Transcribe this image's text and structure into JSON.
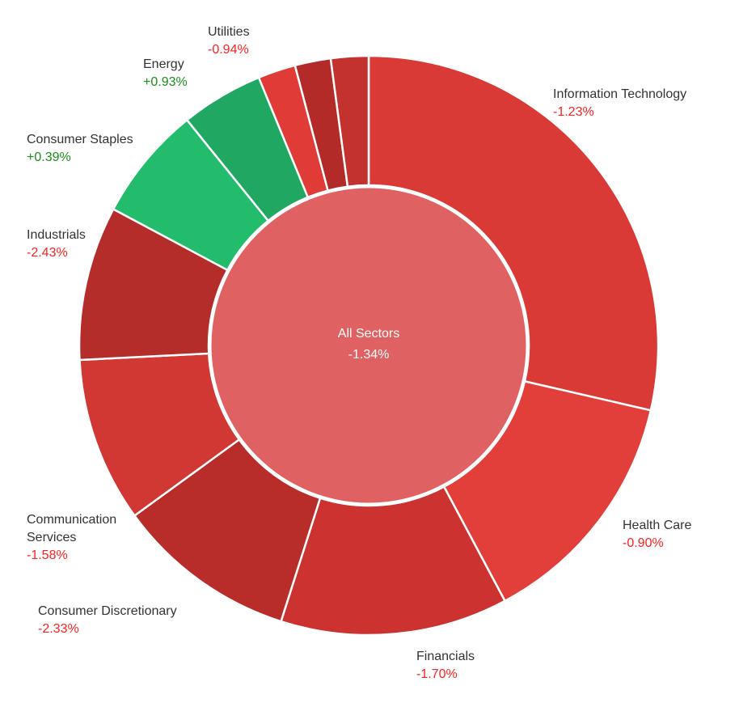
{
  "chart_data": {
    "type": "pie",
    "center": {
      "label": "All Sectors",
      "change": "-1.34%",
      "color": "#e06161"
    },
    "slices": [
      {
        "name": [
          "Information Technology"
        ],
        "change": "-1.23%",
        "weight": 28.6,
        "color": "#d93a35"
      },
      {
        "name": [
          "Health Care"
        ],
        "change": "-0.90%",
        "weight": 13.6,
        "color": "#e23f3a"
      },
      {
        "name": [
          "Financials"
        ],
        "change": "-1.70%",
        "weight": 12.7,
        "color": "#cb3230"
      },
      {
        "name": [
          "Consumer Discretionary"
        ],
        "change": "-2.33%",
        "weight": 10.1,
        "color": "#b82c2a"
      },
      {
        "name": [
          "Communication",
          "Services"
        ],
        "change": "-1.58%",
        "weight": 9.2,
        "color": "#d13733"
      },
      {
        "name": [
          "Industrials"
        ],
        "change": "-2.43%",
        "weight": 8.6,
        "color": "#b42d2a"
      },
      {
        "name": [
          "Consumer Staples"
        ],
        "change": "+0.39%",
        "weight": 6.4,
        "color": "#22bc6c"
      },
      {
        "name": [
          "Energy"
        ],
        "change": "+0.93%",
        "weight": 4.6,
        "color": "#20a862"
      },
      {
        "name": [
          "Utilities"
        ],
        "change": "-0.94%",
        "weight": 2.1,
        "color": "#e03b37"
      },
      {
        "name": [
          ""
        ],
        "change": "",
        "weight": 2.0,
        "color": "#b22b28"
      },
      {
        "name": [
          ""
        ],
        "change": "",
        "weight": 2.1,
        "color": "#c43230"
      }
    ],
    "colors": {
      "negative_text": "#ff2020",
      "positive_text": "#1a8f1a"
    }
  }
}
